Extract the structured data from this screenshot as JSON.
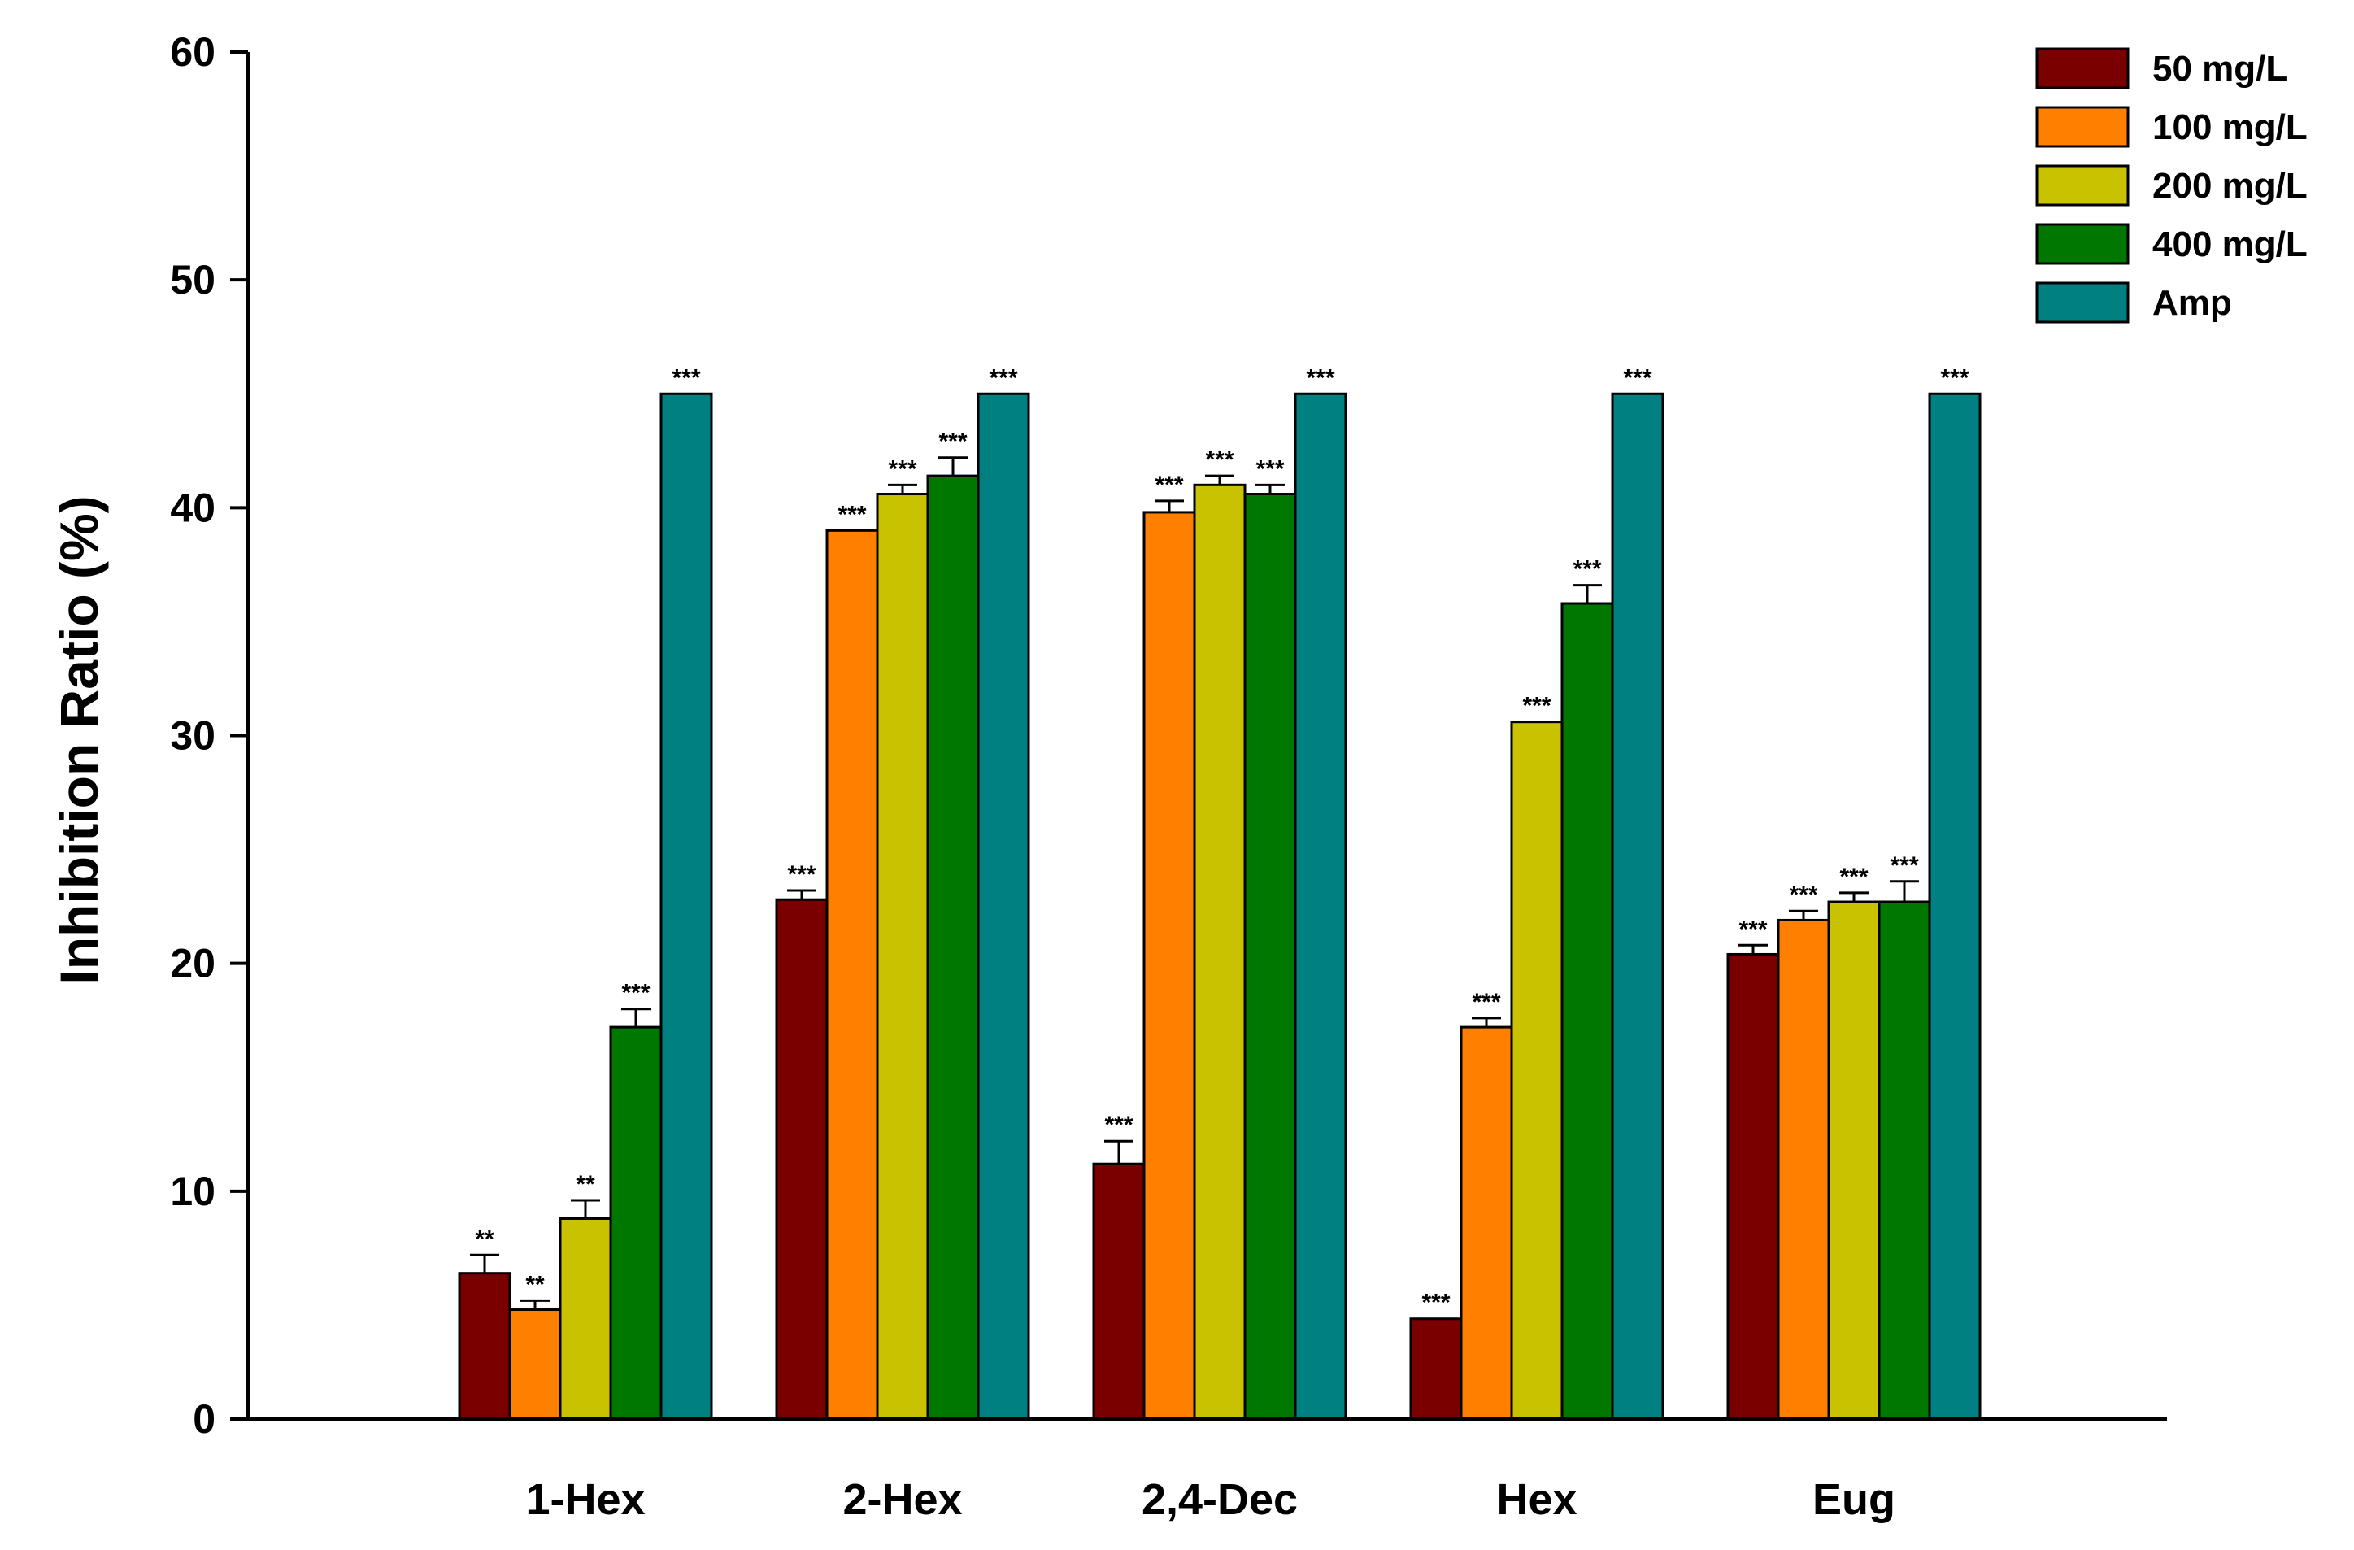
{
  "chart_data": {
    "type": "bar",
    "ylabel": "Inhibition Ratio (%)",
    "xlabel": "",
    "ylim": [
      0,
      60
    ],
    "yticks": [
      "0",
      "10",
      "20",
      "30",
      "40",
      "50",
      "60"
    ],
    "categories": [
      "1-Hex",
      "2-Hex",
      "2,4-Dec",
      "Hex",
      "Eug"
    ],
    "legend_position": "top-right",
    "series": [
      {
        "name": "50 mg/L",
        "color": "#7a0000",
        "values": [
          6.4,
          22.8,
          11.2,
          4.4,
          20.4
        ],
        "errors": [
          0.8,
          0.4,
          1.0,
          0.0,
          0.4
        ],
        "significance": [
          "**",
          "***",
          "***",
          "***",
          "***"
        ]
      },
      {
        "name": "100 mg/L",
        "color": "#ff8000",
        "values": [
          4.8,
          39.0,
          39.8,
          17.2,
          21.9
        ],
        "errors": [
          0.4,
          0.0,
          0.5,
          0.4,
          0.4
        ],
        "significance": [
          "**",
          "***",
          "***",
          "***",
          "***"
        ]
      },
      {
        "name": "200 mg/L",
        "color": "#c9c200",
        "values": [
          8.8,
          40.6,
          41.0,
          30.6,
          22.7
        ],
        "errors": [
          0.8,
          0.4,
          0.4,
          0.0,
          0.4
        ],
        "significance": [
          "**",
          "***",
          "***",
          "***",
          "***"
        ]
      },
      {
        "name": "400 mg/L",
        "color": "#007800",
        "values": [
          17.2,
          41.4,
          40.6,
          35.8,
          22.7
        ],
        "errors": [
          0.8,
          0.8,
          0.4,
          0.8,
          0.9
        ],
        "significance": [
          "***",
          "***",
          "***",
          "***",
          "***"
        ]
      },
      {
        "name": "Amp",
        "color": "#008080",
        "values": [
          45.0,
          45.0,
          45.0,
          45.0,
          45.0
        ],
        "errors": [
          0.0,
          0.0,
          0.0,
          0.0,
          0.0
        ],
        "significance": [
          "***",
          "***",
          "***",
          "***",
          "***"
        ]
      }
    ]
  }
}
